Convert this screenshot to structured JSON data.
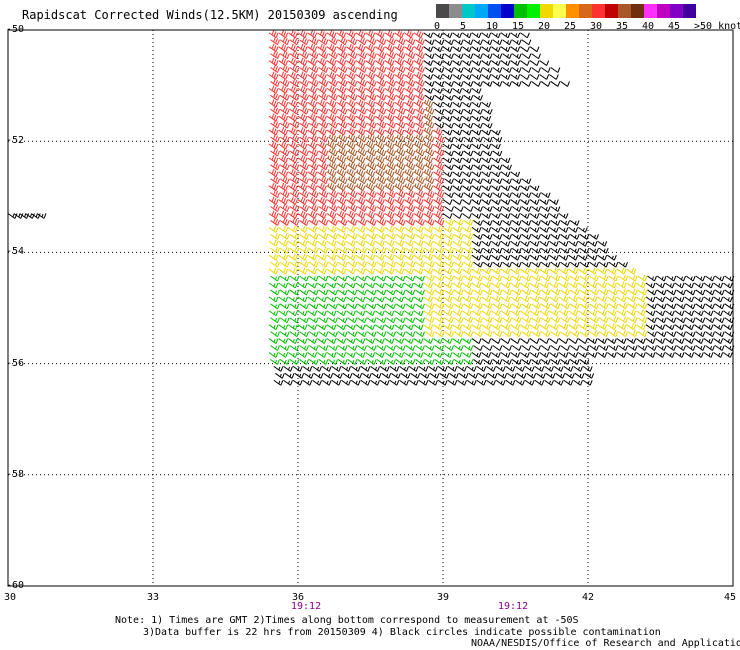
{
  "title": "Rapidscat Corrected Winds(12.5KM) 20150309 ascending",
  "colorbar": {
    "swatches": [
      "#4a4a4a",
      "#8c8c8c",
      "#00c8c8",
      "#00a8f8",
      "#0050f0",
      "#0000c8",
      "#00c000",
      "#00f000",
      "#f0d800",
      "#ffff50",
      "#ff9000",
      "#d86818",
      "#ff3030",
      "#c00000",
      "#a85828",
      "#703010",
      "#ff30ff",
      "#c000c0",
      "#8000c8",
      "#4000a0"
    ],
    "labels": [
      "0",
      "5",
      "10",
      "15",
      "20",
      "25",
      "30",
      "35",
      "40",
      "45",
      ">50 knots"
    ]
  },
  "lat_labels": [
    "-50",
    "-52",
    "-54",
    "-56",
    "-58",
    "-60"
  ],
  "lon_labels": [
    "30",
    "33",
    "36",
    "39",
    "42",
    "45"
  ],
  "time_labels": [
    "19:12",
    "19:12"
  ],
  "notes": [
    "Note: 1) Times are GMT 2)Times along bottom correspond to measurement at -50S",
    "3)Data buffer is 22 hrs from 20150309 4) Black circles indicate possible contamination",
    "NOAA/NESDIS/Office of Research and Applications"
  ],
  "map_data": {
    "type": "wind-barb-swath",
    "lon_range": [
      30,
      45
    ],
    "lat_range": [
      -60,
      -50
    ],
    "grid": true,
    "grid_lons": [
      33,
      36,
      39,
      42
    ],
    "grid_lats": [
      -52,
      -54,
      -56,
      -58
    ],
    "isolated_barbs": {
      "lon_range": [
        30.0,
        30.7
      ],
      "lat": -53.3,
      "speed_kt": 15
    },
    "speed_zones": [
      {
        "lat_range": [
          -51.8,
          -50.0
        ],
        "lon_range": [
          35.4,
          38.6
        ],
        "speed_kt": 32
      },
      {
        "lat_range": [
          -52.8,
          -51.3
        ],
        "lon_range": [
          36.5,
          38.8
        ],
        "speed_kt": 37
      },
      {
        "lat_range": [
          -53.5,
          -51.8
        ],
        "lon_range": [
          35.4,
          38.9
        ],
        "speed_kt": 30
      },
      {
        "lat_range": [
          -54.4,
          -53.4
        ],
        "lon_range": [
          35.4,
          39.5
        ],
        "speed_kt": 23
      },
      {
        "lat_range": [
          -55.5,
          -54.3
        ],
        "lon_range": [
          38.5,
          43.2
        ],
        "speed_kt": 22
      },
      {
        "lat_range": [
          -55.3,
          -54.4
        ],
        "lon_range": [
          35.4,
          38.6
        ],
        "speed_kt": 17
      },
      {
        "lat_range": [
          -56.0,
          -55.2
        ],
        "lon_range": [
          35.4,
          39.5
        ],
        "speed_kt": 17
      },
      {
        "lat_range": [
          -56.0,
          -55.4
        ],
        "lon_range": [
          35.4,
          36.2
        ],
        "speed_kt": 12
      },
      {
        "lat_range": [
          -56.3,
          -55.7
        ],
        "lon_range": [
          35.4,
          42.0
        ],
        "speed_kt": 15
      },
      {
        "lat_range": [
          -53.0,
          -50.0
        ],
        "lon_range": [
          38.6,
          40.5
        ],
        "speed_kt": 15
      },
      {
        "lat_range": [
          -54.5,
          -52.3
        ],
        "lon_range": [
          39.5,
          42.8
        ],
        "speed_kt": 15
      },
      {
        "lat_range": [
          -56.2,
          -54.3
        ],
        "lon_range": [
          42.0,
          45.0
        ],
        "speed_kt": 15
      }
    ]
  }
}
